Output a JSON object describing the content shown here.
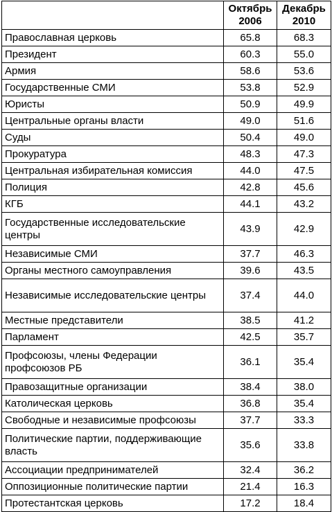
{
  "table": {
    "headers": [
      "",
      "Октябрь 2006",
      "Декабрь 2010"
    ],
    "rows": [
      {
        "name": "Православная церковь",
        "v2006": "65.8",
        "v2010": "68.3"
      },
      {
        "name": "Президент",
        "v2006": "60.3",
        "v2010": "55.0"
      },
      {
        "name": "Армия",
        "v2006": "58.6",
        "v2010": "53.6"
      },
      {
        "name": "Государственные СМИ",
        "v2006": "53.8",
        "v2010": "52.9"
      },
      {
        "name": "Юристы",
        "v2006": "50.9",
        "v2010": "49.9"
      },
      {
        "name": "Центральные органы власти",
        "v2006": "49.0",
        "v2010": "51.6"
      },
      {
        "name": "Суды",
        "v2006": "50.4",
        "v2010": "49.0"
      },
      {
        "name": "Прокуратура",
        "v2006": "48.3",
        "v2010": "47.3"
      },
      {
        "name": "Центральная избирательная комиссия",
        "v2006": "44.0",
        "v2010": "47.5"
      },
      {
        "name": "Полиция",
        "v2006": "42.8",
        "v2010": "45.6"
      },
      {
        "name": "КГБ",
        "v2006": "44.1",
        "v2010": "43.2"
      },
      {
        "name": "Государственные исследовательские центры",
        "v2006": "43.9",
        "v2010": "42.9"
      },
      {
        "name": "Независимые СМИ",
        "v2006": "37.7",
        "v2010": "46.3"
      },
      {
        "name": "Органы местного самоуправления",
        "v2006": "39.6",
        "v2010": "43.5"
      },
      {
        "name": "Независимые исследовательские центры",
        "v2006": "37.4",
        "v2010": "44.0"
      },
      {
        "name": "Местные представители",
        "v2006": "38.5",
        "v2010": "41.2"
      },
      {
        "name": "Парламент",
        "v2006": "42.5",
        "v2010": "35.7"
      },
      {
        "name": "Профсоюзы, члены Федерации профсоюзов РБ",
        "v2006": "36.1",
        "v2010": "35.4"
      },
      {
        "name": "Правозащитные организации",
        "v2006": "38.4",
        "v2010": "38.0"
      },
      {
        "name": "Католическая церковь",
        "v2006": "36.8",
        "v2010": "35.4"
      },
      {
        "name": "Свободные и независимые профсоюзы",
        "v2006": "37.7",
        "v2010": "33.3"
      },
      {
        "name": "Политические партии, поддерживающие власть",
        "v2006": "35.6",
        "v2010": "33.8"
      },
      {
        "name": "Ассоциации предпринимателей",
        "v2006": "32.4",
        "v2010": "36.2"
      },
      {
        "name": "Оппозиционные политические партии",
        "v2006": "21.4",
        "v2010": "16.3"
      },
      {
        "name": "Протестантская церковь",
        "v2006": "17.2",
        "v2010": "18.4"
      }
    ]
  }
}
